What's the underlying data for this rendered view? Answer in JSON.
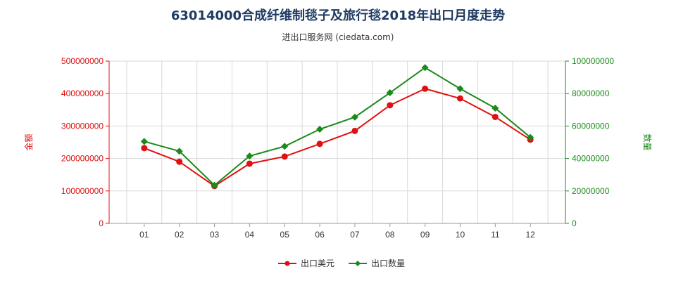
{
  "chart_data": {
    "type": "line",
    "title": "63014000合成纤维制毯子及旅行毯2018年出口月度走势",
    "subtitle": "进出口服务网 (ciedata.com)",
    "categories": [
      "01",
      "02",
      "03",
      "04",
      "05",
      "06",
      "07",
      "08",
      "09",
      "10",
      "11",
      "12"
    ],
    "series": [
      {
        "name": "出口美元",
        "axis": "left",
        "color": "#e01010",
        "values": [
          232000000,
          190000000,
          115000000,
          184000000,
          206000000,
          245000000,
          285000000,
          364000000,
          415000000,
          385000000,
          328000000,
          258000000
        ]
      },
      {
        "name": "出口数量",
        "axis": "right",
        "color": "#1a8a1a",
        "values": [
          50500000,
          44500000,
          23500000,
          41500000,
          47500000,
          58000000,
          65500000,
          80500000,
          96000000,
          83000000,
          71000000,
          53000000
        ]
      }
    ],
    "ylabel_left": "金额",
    "ylabel_right": "数量",
    "ylim_left": [
      0,
      500000000
    ],
    "ylim_right": [
      0,
      100000000
    ],
    "yticks_left": [
      "0",
      "100000000",
      "200000000",
      "300000000",
      "400000000",
      "500000000"
    ],
    "yticks_right": [
      "0",
      "20000000",
      "40000000",
      "60000000",
      "80000000",
      "100000000"
    ],
    "grid": true,
    "legend_position": "bottom-center",
    "left_axis_color": "#e01010",
    "right_axis_color": "#1a8a1a"
  }
}
